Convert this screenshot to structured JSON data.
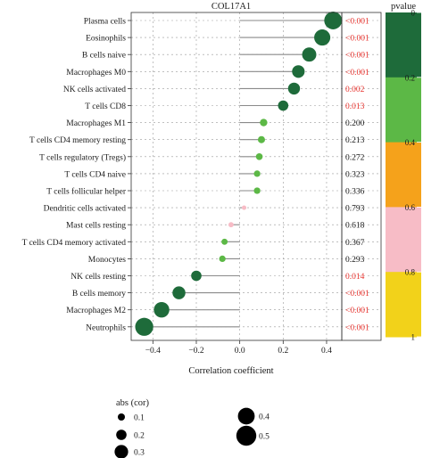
{
  "chart_data": {
    "type": "lollipop",
    "title": "COL17A1",
    "xlabel": "Correlation coefficient",
    "xlim": [
      -0.5,
      0.47
    ],
    "x_ticks": [
      -0.4,
      -0.2,
      0.0,
      0.2,
      0.4
    ],
    "x_tick_labels": [
      "−0.4",
      "−0.2",
      "0.0",
      "0.2",
      "0.4"
    ],
    "grid": true,
    "legend_position": "right",
    "rows": [
      {
        "label": "Plasma cells",
        "cor": 0.43,
        "pvalue_text": "<0.001",
        "pvalue": 0.0005,
        "significant": true
      },
      {
        "label": "Eosinophils",
        "cor": 0.38,
        "pvalue_text": "<0.001",
        "pvalue": 0.0005,
        "significant": true
      },
      {
        "label": "B cells naive",
        "cor": 0.32,
        "pvalue_text": "<0.001",
        "pvalue": 0.0005,
        "significant": true
      },
      {
        "label": "Macrophages M0",
        "cor": 0.27,
        "pvalue_text": "<0.001",
        "pvalue": 0.0005,
        "significant": true
      },
      {
        "label": "NK cells activated",
        "cor": 0.25,
        "pvalue_text": "0.002",
        "pvalue": 0.002,
        "significant": true
      },
      {
        "label": "T cells CD8",
        "cor": 0.2,
        "pvalue_text": "0.013",
        "pvalue": 0.013,
        "significant": true
      },
      {
        "label": "Macrophages M1",
        "cor": 0.11,
        "pvalue_text": "0.200",
        "pvalue": 0.2,
        "significant": false
      },
      {
        "label": "T cells CD4 memory resting",
        "cor": 0.1,
        "pvalue_text": "0.213",
        "pvalue": 0.213,
        "significant": false
      },
      {
        "label": "T cells regulatory (Tregs)",
        "cor": 0.09,
        "pvalue_text": "0.272",
        "pvalue": 0.272,
        "significant": false
      },
      {
        "label": "T cells CD4 naive",
        "cor": 0.08,
        "pvalue_text": "0.323",
        "pvalue": 0.323,
        "significant": false
      },
      {
        "label": "T cells follicular helper",
        "cor": 0.08,
        "pvalue_text": "0.336",
        "pvalue": 0.336,
        "significant": false
      },
      {
        "label": "Dendritic cells activated",
        "cor": 0.02,
        "pvalue_text": "0.793",
        "pvalue": 0.793,
        "significant": false
      },
      {
        "label": "Mast cells resting",
        "cor": -0.04,
        "pvalue_text": "0.618",
        "pvalue": 0.618,
        "significant": false
      },
      {
        "label": "T cells CD4 memory activated",
        "cor": -0.07,
        "pvalue_text": "0.367",
        "pvalue": 0.367,
        "significant": false
      },
      {
        "label": "Monocytes",
        "cor": -0.08,
        "pvalue_text": "0.293",
        "pvalue": 0.293,
        "significant": false
      },
      {
        "label": "NK cells resting",
        "cor": -0.2,
        "pvalue_text": "0.014",
        "pvalue": 0.014,
        "significant": true
      },
      {
        "label": "B cells memory",
        "cor": -0.28,
        "pvalue_text": "<0.001",
        "pvalue": 0.0005,
        "significant": true
      },
      {
        "label": "Macrophages M2",
        "cor": -0.36,
        "pvalue_text": "<0.001",
        "pvalue": 0.0005,
        "significant": true
      },
      {
        "label": "Neutrophils",
        "cor": -0.44,
        "pvalue_text": "<0.001",
        "pvalue": 0.0005,
        "significant": true
      }
    ],
    "colors": {
      "significant_text": "#e8322d",
      "normal_text": "#1a1a1a",
      "stem": "#8a8a8a",
      "grid": "#9a9a9a"
    },
    "pvalue_legend": {
      "title": "pvalue",
      "ticks": [
        "0",
        "0.2",
        "0.4",
        "0.6",
        "0.8",
        "1"
      ],
      "bands": [
        {
          "from": 0.0,
          "to": 0.2,
          "color": "#1e6b3a"
        },
        {
          "from": 0.2,
          "to": 0.4,
          "color": "#5cb846"
        },
        {
          "from": 0.4,
          "to": 0.6,
          "color": "#f5a21b"
        },
        {
          "from": 0.6,
          "to": 0.8,
          "color": "#f7bcc6"
        },
        {
          "from": 0.8,
          "to": 1.0,
          "color": "#f2d21a"
        }
      ]
    },
    "size_legend": {
      "title": "abs (cor)",
      "entries": [
        {
          "label": "0.1",
          "value": 0.1
        },
        {
          "label": "0.2",
          "value": 0.2
        },
        {
          "label": "0.3",
          "value": 0.3
        },
        {
          "label": "0.4",
          "value": 0.4
        },
        {
          "label": "0.5",
          "value": 0.5
        }
      ]
    }
  }
}
